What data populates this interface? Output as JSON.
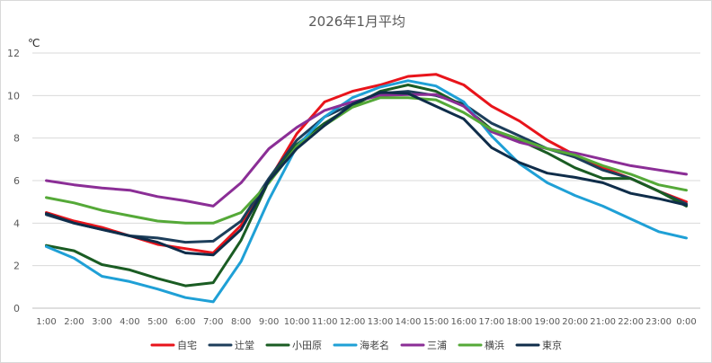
{
  "chart_data": {
    "type": "line",
    "title": "2026年1月平均",
    "ylabel": "℃",
    "xlabel": "",
    "ylim": [
      0,
      12
    ],
    "yticks": [
      0,
      2,
      4,
      6,
      8,
      10,
      12
    ],
    "grid": true,
    "legend_position": "bottom",
    "categories": [
      "1:00",
      "2:00",
      "3:00",
      "4:00",
      "5:00",
      "6:00",
      "7:00",
      "8:00",
      "9:00",
      "10:00",
      "11:00",
      "12:00",
      "13:00",
      "14:00",
      "15:00",
      "16:00",
      "17:00",
      "18:00",
      "19:00",
      "20:00",
      "21:00",
      "22:00",
      "23:00",
      "0:00"
    ],
    "series": [
      {
        "name": "自宅",
        "color": "#e8141b",
        "values": [
          4.5,
          4.1,
          3.8,
          3.4,
          3.0,
          2.8,
          2.6,
          3.9,
          6.0,
          8.2,
          9.7,
          10.2,
          10.5,
          10.9,
          11.0,
          10.5,
          9.5,
          8.8,
          7.9,
          7.2,
          6.6,
          6.1,
          5.5,
          5.0
        ]
      },
      {
        "name": "辻堂",
        "color": "#1d3e5b",
        "values": [
          4.4,
          4.0,
          3.7,
          3.4,
          3.3,
          3.1,
          3.15,
          4.1,
          6.1,
          7.9,
          9.0,
          9.6,
          10.1,
          10.2,
          10.0,
          9.6,
          8.7,
          8.1,
          7.5,
          7.1,
          6.5,
          6.1,
          5.5,
          4.9
        ]
      },
      {
        "name": "小田原",
        "color": "#1a5c23",
        "values": [
          2.95,
          2.7,
          2.05,
          1.8,
          1.4,
          1.05,
          1.2,
          3.2,
          6.0,
          7.7,
          8.7,
          9.5,
          10.2,
          10.5,
          10.2,
          9.5,
          8.4,
          7.9,
          7.3,
          6.6,
          6.1,
          6.1,
          5.5,
          4.8
        ]
      },
      {
        "name": "海老名",
        "color": "#1fa0d6",
        "values": [
          2.9,
          2.35,
          1.5,
          1.25,
          0.9,
          0.5,
          0.3,
          2.2,
          5.1,
          7.6,
          9.0,
          9.9,
          10.4,
          10.7,
          10.45,
          9.7,
          8.1,
          6.8,
          5.9,
          5.3,
          4.8,
          4.2,
          3.6,
          3.3
        ]
      },
      {
        "name": "三浦",
        "color": "#8b2e96",
        "values": [
          6.0,
          5.8,
          5.65,
          5.55,
          5.25,
          5.05,
          4.8,
          5.9,
          7.5,
          8.5,
          9.3,
          9.7,
          10.0,
          10.05,
          10.05,
          9.5,
          8.3,
          7.8,
          7.5,
          7.3,
          7.0,
          6.7,
          6.5,
          6.3
        ]
      },
      {
        "name": "横浜",
        "color": "#55a938",
        "values": [
          5.2,
          4.95,
          4.6,
          4.35,
          4.1,
          4.0,
          4.0,
          4.5,
          5.9,
          7.6,
          8.6,
          9.45,
          9.9,
          9.9,
          9.8,
          9.2,
          8.4,
          7.95,
          7.5,
          7.2,
          6.7,
          6.3,
          5.8,
          5.55
        ]
      },
      {
        "name": "東京",
        "color": "#0f2d4a",
        "values": [
          4.45,
          4.0,
          3.7,
          3.4,
          3.1,
          2.6,
          2.5,
          3.7,
          6.0,
          7.5,
          8.6,
          9.6,
          10.15,
          10.1,
          9.5,
          8.9,
          7.55,
          6.85,
          6.35,
          6.15,
          5.9,
          5.4,
          5.15,
          4.85
        ]
      }
    ]
  }
}
